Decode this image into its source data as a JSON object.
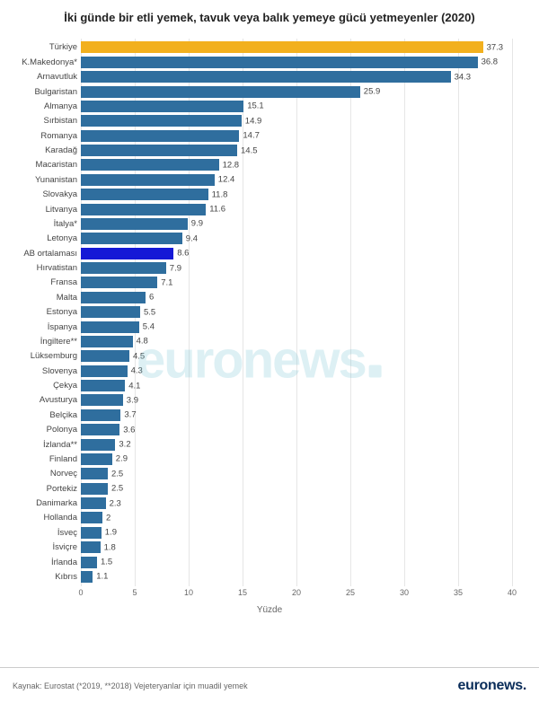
{
  "chart": {
    "type": "bar-horizontal",
    "title": "İki günde bir etli yemek, tavuk veya balık yemeye gücü yetmeyenler (2020)",
    "xlabel": "Yüzde",
    "xlim": [
      0,
      40
    ],
    "xtick_step": 5,
    "xticks": [
      0,
      5,
      10,
      15,
      20,
      25,
      30,
      35,
      40
    ],
    "grid_color": "#e6e6e6",
    "background_color": "#ffffff",
    "default_bar_color": "#2f6e9e",
    "highlight_color_1": "#f2b01e",
    "highlight_color_2": "#1519d6",
    "label_fontsize": 9.5,
    "title_fontsize": 13,
    "xlabel_fontsize": 10,
    "title_color": "#222222",
    "label_color": "#444444",
    "xtick_color": "#666666",
    "data": [
      {
        "label": "Türkiye",
        "value": 37.3,
        "color": "#f2b01e"
      },
      {
        "label": "K.Makedonya*",
        "value": 36.8,
        "color": "#2f6e9e"
      },
      {
        "label": "Arnavutluk",
        "value": 34.3,
        "color": "#2f6e9e"
      },
      {
        "label": "Bulgaristan",
        "value": 25.9,
        "color": "#2f6e9e"
      },
      {
        "label": "Almanya",
        "value": 15.1,
        "color": "#2f6e9e"
      },
      {
        "label": "Sırbistan",
        "value": 14.9,
        "color": "#2f6e9e"
      },
      {
        "label": "Romanya",
        "value": 14.7,
        "color": "#2f6e9e"
      },
      {
        "label": "Karadağ",
        "value": 14.5,
        "color": "#2f6e9e"
      },
      {
        "label": "Macaristan",
        "value": 12.8,
        "color": "#2f6e9e"
      },
      {
        "label": "Yunanistan",
        "value": 12.4,
        "color": "#2f6e9e"
      },
      {
        "label": "Slovakya",
        "value": 11.8,
        "color": "#2f6e9e"
      },
      {
        "label": "Litvanya",
        "value": 11.6,
        "color": "#2f6e9e"
      },
      {
        "label": "İtalya*",
        "value": 9.9,
        "color": "#2f6e9e"
      },
      {
        "label": "Letonya",
        "value": 9.4,
        "color": "#2f6e9e"
      },
      {
        "label": "AB ortalaması",
        "value": 8.6,
        "color": "#1519d6"
      },
      {
        "label": "Hırvatistan",
        "value": 7.9,
        "color": "#2f6e9e"
      },
      {
        "label": "Fransa",
        "value": 7.1,
        "color": "#2f6e9e"
      },
      {
        "label": "Malta",
        "value": 6.0,
        "color": "#2f6e9e",
        "display": "6"
      },
      {
        "label": "Estonya",
        "value": 5.5,
        "color": "#2f6e9e"
      },
      {
        "label": "İspanya",
        "value": 5.4,
        "color": "#2f6e9e"
      },
      {
        "label": "İngiltere**",
        "value": 4.8,
        "color": "#2f6e9e"
      },
      {
        "label": "Lüksemburg",
        "value": 4.5,
        "color": "#2f6e9e"
      },
      {
        "label": "Slovenya",
        "value": 4.3,
        "color": "#2f6e9e"
      },
      {
        "label": "Çekya",
        "value": 4.1,
        "color": "#2f6e9e"
      },
      {
        "label": "Avusturya",
        "value": 3.9,
        "color": "#2f6e9e"
      },
      {
        "label": "Belçika",
        "value": 3.7,
        "color": "#2f6e9e"
      },
      {
        "label": "Polonya",
        "value": 3.6,
        "color": "#2f6e9e"
      },
      {
        "label": "İzlanda**",
        "value": 3.2,
        "color": "#2f6e9e"
      },
      {
        "label": "Finland",
        "value": 2.9,
        "color": "#2f6e9e"
      },
      {
        "label": "Norveç",
        "value": 2.5,
        "color": "#2f6e9e"
      },
      {
        "label": "Portekiz",
        "value": 2.5,
        "color": "#2f6e9e"
      },
      {
        "label": "Danimarka",
        "value": 2.3,
        "color": "#2f6e9e"
      },
      {
        "label": "Hollanda",
        "value": 2.0,
        "color": "#2f6e9e",
        "display": "2"
      },
      {
        "label": "İsveç",
        "value": 1.9,
        "color": "#2f6e9e"
      },
      {
        "label": "İsviçre",
        "value": 1.8,
        "color": "#2f6e9e"
      },
      {
        "label": "İrlanda",
        "value": 1.5,
        "color": "#2f6e9e"
      },
      {
        "label": "Kıbrıs",
        "value": 1.1,
        "color": "#2f6e9e"
      }
    ]
  },
  "footer": {
    "source": "Kaynak: Eurostat (*2019, **2018) Vejeteryanlar için muadil yemek",
    "brand": "euronews",
    "brand_color": "#0a2d5a",
    "divider_color": "#cccccc",
    "source_color": "#666666"
  },
  "watermark": {
    "text": "euronews",
    "color": "rgba(120,195,210,0.25)",
    "fontsize": 58
  }
}
